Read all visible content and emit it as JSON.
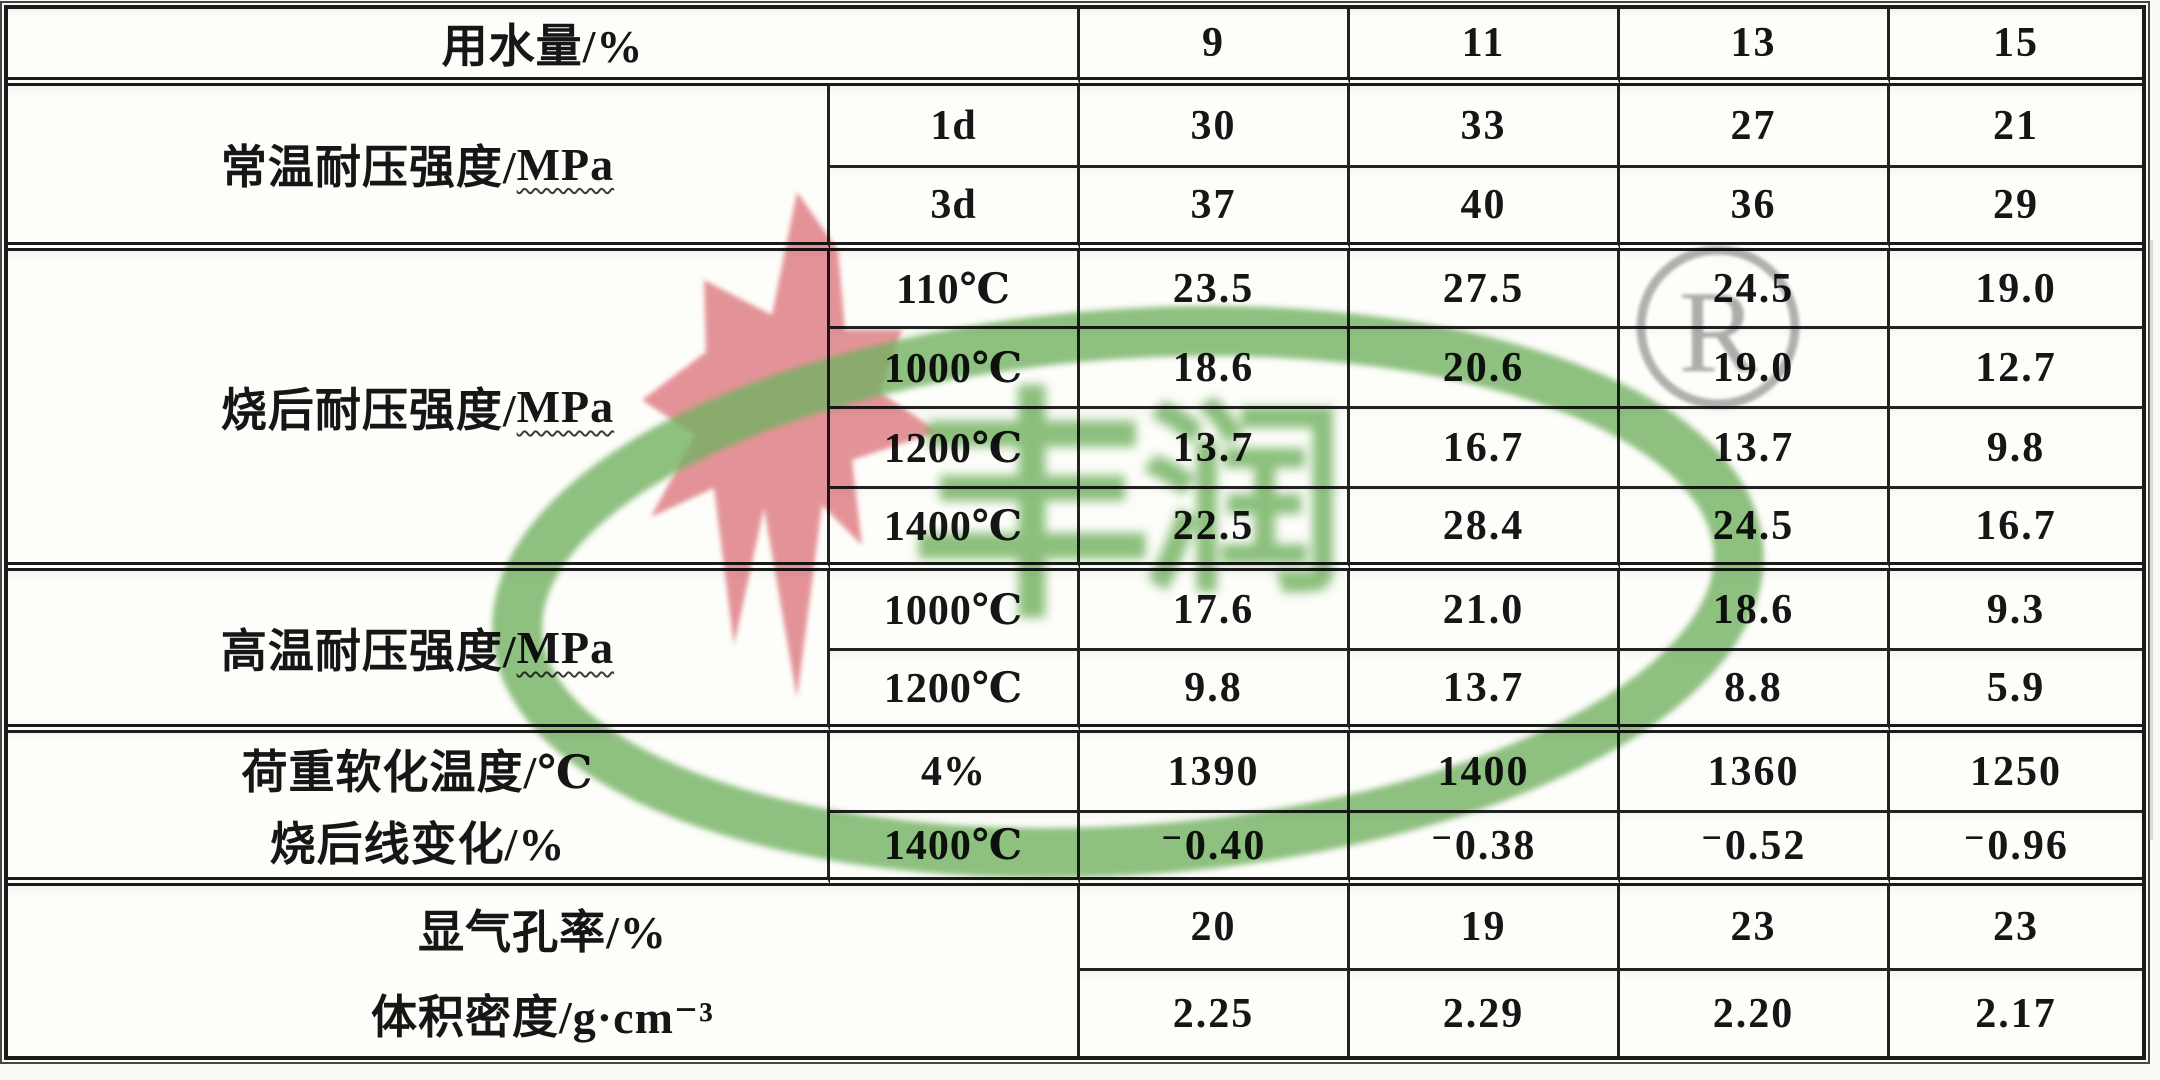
{
  "document": {
    "kind": "scanned printed data table",
    "language": "zh-CN",
    "background": "#fafaf7",
    "ink_color": "#1b1b1b"
  },
  "watermark": {
    "star_color": "#e2868c",
    "ellipse_color": "#74b364",
    "mark_color": "#666666",
    "logo_text": "丰润",
    "char1": "丰",
    "char2": "润",
    "registered": "R"
  },
  "table": {
    "grid": {
      "col_tracks": "822px 250px 270px 270px 270px 252px",
      "row_tracks": "77px 82px 83px 78px 80px 80px 82px 80px 82px 80px 73px 85px 85px",
      "rows": [
        {
          "r": 1,
          "label": {
            "text": "用水量/%",
            "span_cols": 2
          },
          "values": [
            "9",
            "11",
            "13",
            "15"
          ],
          "thick": true
        },
        {
          "r": 2,
          "group": {
            "pre": "常温耐压强度/",
            "u": "MPa",
            "span": 2
          },
          "sub": "1d",
          "values": [
            "30",
            "33",
            "27",
            "21"
          ]
        },
        {
          "r": 3,
          "sub": "3d",
          "values": [
            "37",
            "40",
            "36",
            "29"
          ],
          "thick": true
        },
        {
          "r": 4,
          "group": {
            "pre": "烧后耐压强度/",
            "u": "MPa",
            "span": 4
          },
          "sub": "110℃",
          "values": [
            "23.5",
            "27.5",
            "24.5",
            "19.0"
          ]
        },
        {
          "r": 5,
          "sub": "1000℃",
          "values": [
            "18.6",
            "20.6",
            "19.0",
            "12.7"
          ]
        },
        {
          "r": 6,
          "sub": "1200℃",
          "values": [
            "13.7",
            "16.7",
            "13.7",
            "9.8"
          ]
        },
        {
          "r": 7,
          "sub": "1400℃",
          "values": [
            "22.5",
            "28.4",
            "24.5",
            "16.7"
          ],
          "thick": true
        },
        {
          "r": 8,
          "group": {
            "pre": "高温耐压强度/",
            "u": "MPa",
            "span": 2
          },
          "sub": "1000℃",
          "values": [
            "17.6",
            "21.0",
            "18.6",
            "9.3"
          ]
        },
        {
          "r": 9,
          "sub": "1200℃",
          "values": [
            "9.8",
            "13.7",
            "8.8",
            "5.9"
          ],
          "thick": true
        },
        {
          "r": 10,
          "group": {
            "lines": [
              "荷重软化温度/℃",
              "烧后线变化/%"
            ],
            "span": 2
          },
          "sub": "4%",
          "values": [
            "1390",
            "1400",
            "1360",
            "1250"
          ]
        },
        {
          "r": 11,
          "sub": "1400℃",
          "values": [
            "⁻0.40",
            "⁻0.38",
            "⁻0.52",
            "⁻0.96"
          ],
          "thick": true
        },
        {
          "r": 12,
          "label": {
            "lines": [
              "显气孔率/%",
              "体积密度/g·cm⁻³"
            ],
            "span_cols": 2,
            "span_rows": 2
          },
          "values": [
            "20",
            "19",
            "23",
            "23"
          ]
        },
        {
          "r": 13,
          "values": [
            "2.25",
            "2.29",
            "2.20",
            "2.17"
          ]
        }
      ]
    }
  },
  "chart_data": {
    "type": "table",
    "title": "",
    "column_header": {
      "label": "用水量/%",
      "values": [
        9,
        11,
        13,
        15
      ]
    },
    "rows": [
      {
        "property": "常温耐压强度/MPa",
        "condition": "1d",
        "values": [
          30,
          33,
          27,
          21
        ]
      },
      {
        "property": "常温耐压强度/MPa",
        "condition": "3d",
        "values": [
          37,
          40,
          36,
          29
        ]
      },
      {
        "property": "烧后耐压强度/MPa",
        "condition": "110℃",
        "values": [
          23.5,
          27.5,
          24.5,
          19.0
        ]
      },
      {
        "property": "烧后耐压强度/MPa",
        "condition": "1000℃",
        "values": [
          18.6,
          20.6,
          19.0,
          12.7
        ]
      },
      {
        "property": "烧后耐压强度/MPa",
        "condition": "1200℃",
        "values": [
          13.7,
          16.7,
          13.7,
          9.8
        ]
      },
      {
        "property": "烧后耐压强度/MPa",
        "condition": "1400℃",
        "values": [
          22.5,
          28.4,
          24.5,
          16.7
        ]
      },
      {
        "property": "高温耐压强度/MPa",
        "condition": "1000℃",
        "values": [
          17.6,
          21.0,
          18.6,
          9.3
        ]
      },
      {
        "property": "高温耐压强度/MPa",
        "condition": "1200℃",
        "values": [
          9.8,
          13.7,
          8.8,
          5.9
        ]
      },
      {
        "property": "荷重软化温度/℃",
        "condition": "4%",
        "values": [
          1390,
          1400,
          1360,
          1250
        ]
      },
      {
        "property": "烧后线变化/%",
        "condition": "1400℃",
        "values": [
          -0.4,
          -0.38,
          -0.52,
          -0.96
        ]
      },
      {
        "property": "显气孔率/%",
        "condition": "",
        "values": [
          20,
          19,
          23,
          23
        ]
      },
      {
        "property": "体积密度/g·cm⁻³",
        "condition": "",
        "values": [
          2.25,
          2.29,
          2.2,
          2.17
        ]
      }
    ]
  }
}
